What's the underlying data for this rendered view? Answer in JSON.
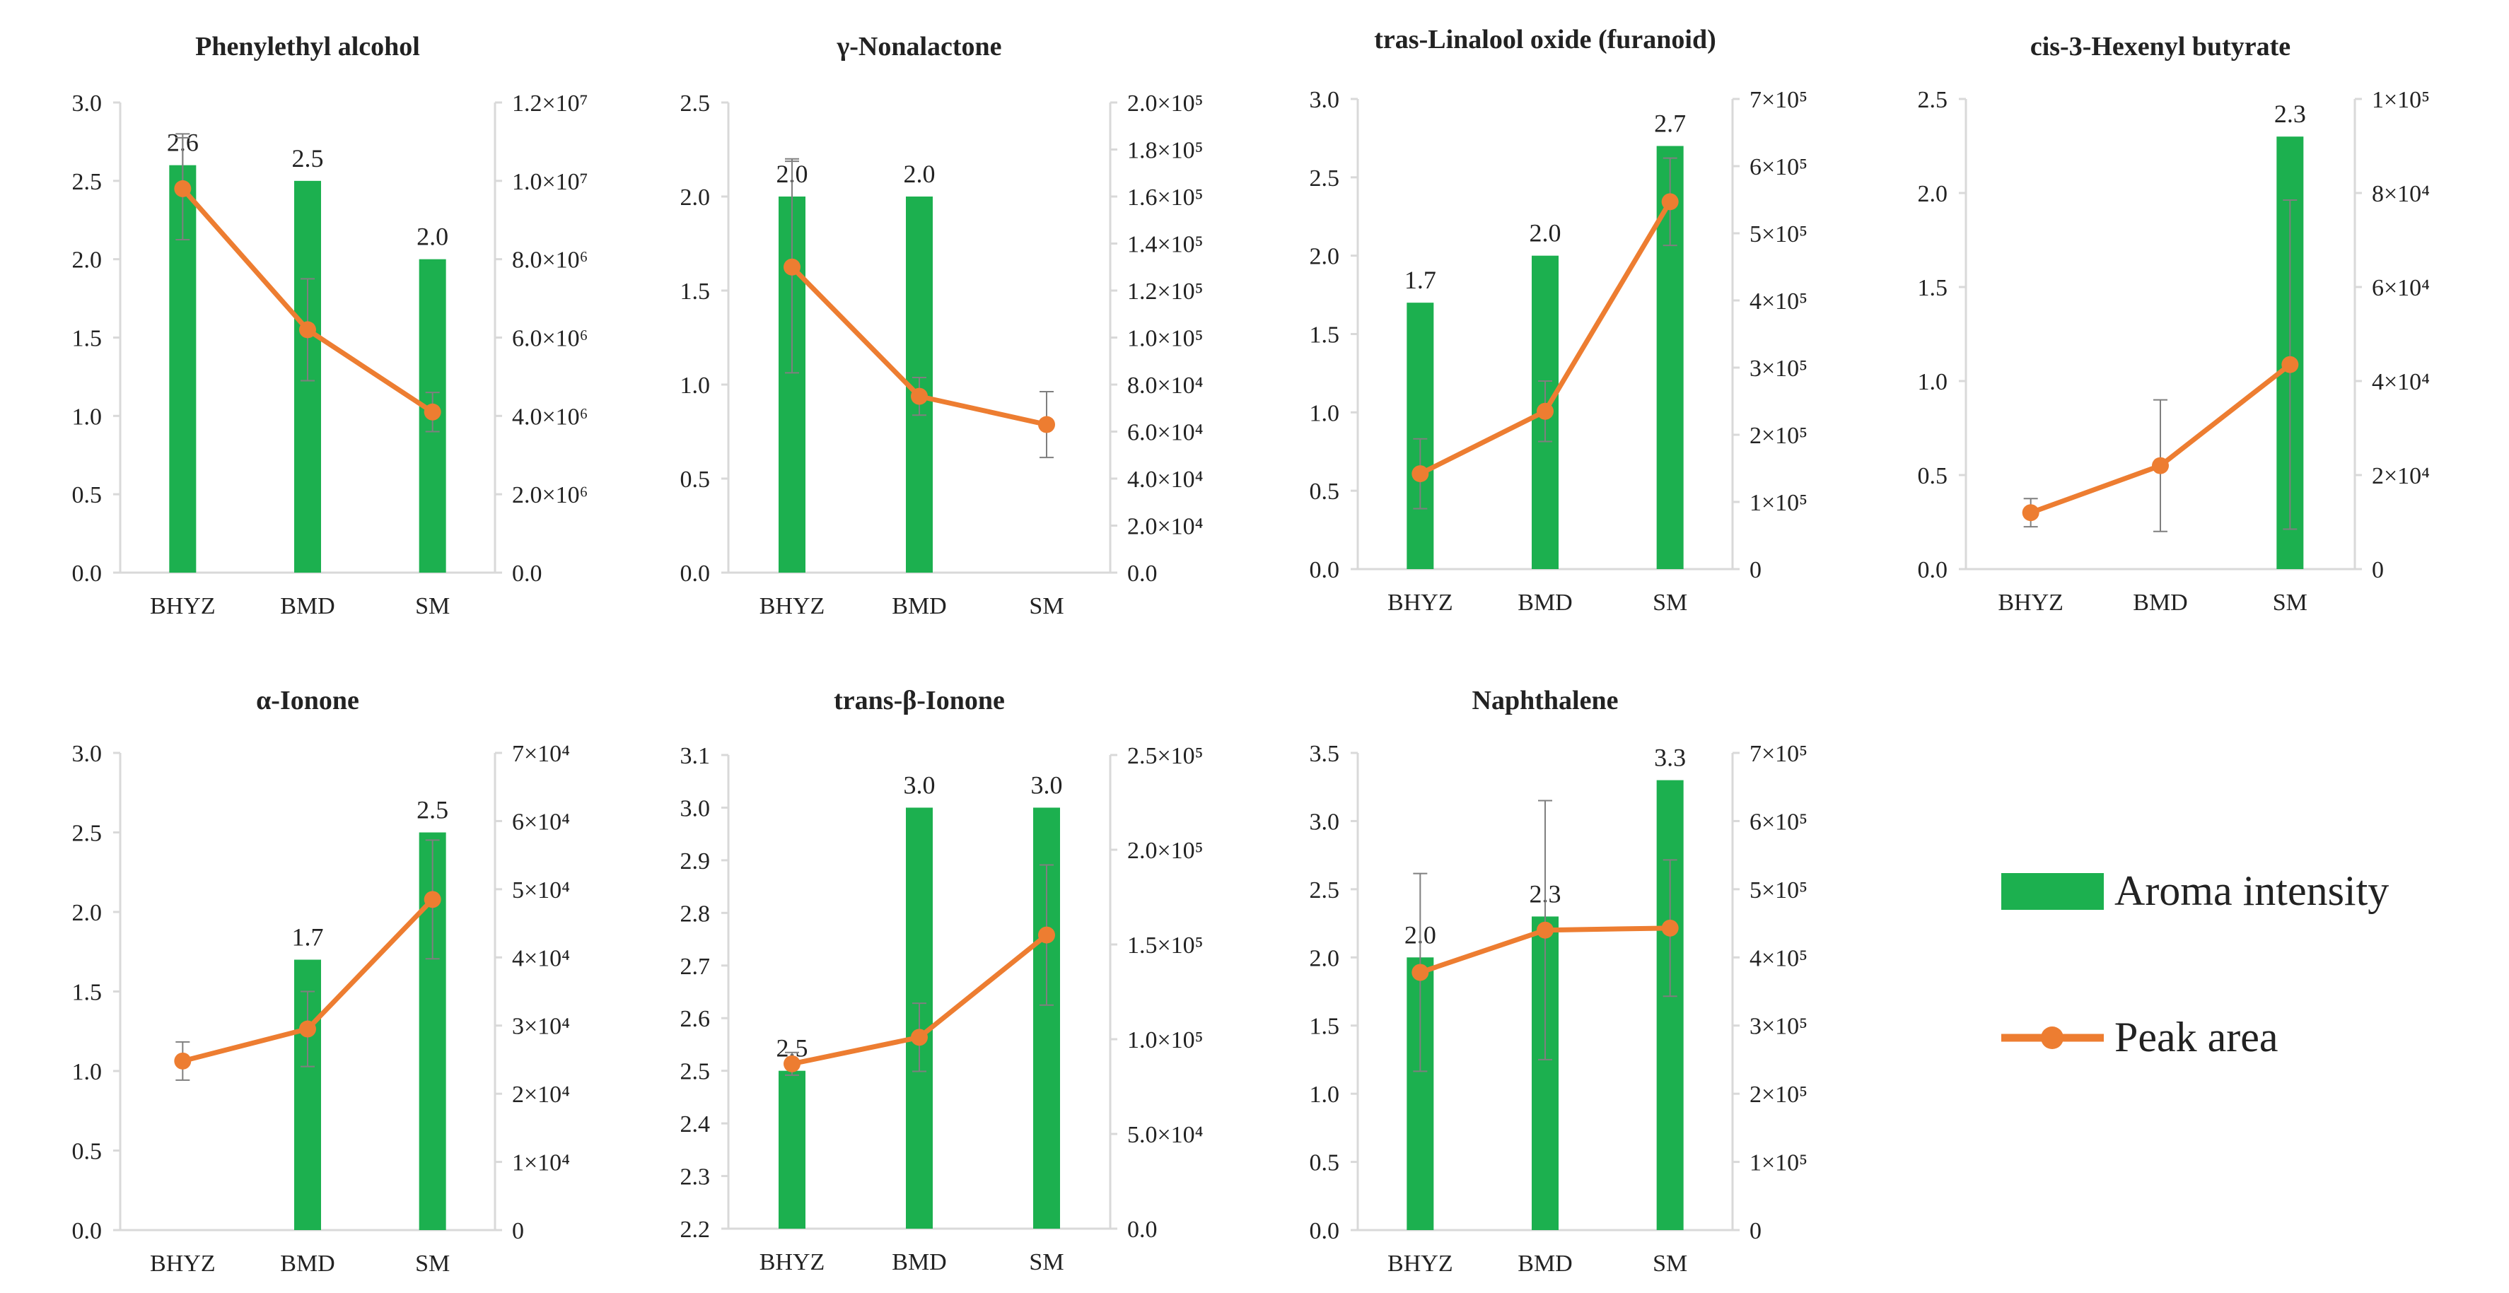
{
  "figure": {
    "colors": {
      "bar": "#1cb04f",
      "line": "#ed7d31",
      "axis": "#d9d9d9",
      "text": "#222222",
      "errorbar": "#7f7f7f"
    },
    "legend": {
      "bar_label": "Aroma intensity",
      "line_label": "Peak area"
    }
  },
  "chart_data": [
    {
      "type": "bar",
      "title": "Phenylethyl alcohol",
      "categories": [
        "BHYZ",
        "BMD",
        "SM"
      ],
      "series": [
        {
          "name": "Aroma intensity",
          "axis": "left",
          "values": [
            2.6,
            2.5,
            2.0
          ],
          "errors": [
            0.2,
            null,
            null
          ]
        },
        {
          "name": "Peak area",
          "axis": "right",
          "type": "line",
          "values": [
            9800000,
            6200000,
            4100000
          ],
          "errors": [
            1300000,
            1300000,
            500000
          ]
        }
      ],
      "data_labels": [
        "2.6",
        "2.5",
        "2.0"
      ],
      "ylim": [
        0,
        3.0
      ],
      "y_ticks": [
        "0.0",
        "0.5",
        "1.0",
        "1.5",
        "2.0",
        "2.5",
        "3.0"
      ],
      "y2lim": [
        0,
        12000000
      ],
      "y2_ticks": [
        "0.0",
        "2.0×10⁶",
        "4.0×10⁶",
        "6.0×10⁶",
        "8.0×10⁶",
        "1.0×10⁷",
        "1.2×10⁷"
      ]
    },
    {
      "type": "bar",
      "title": "γ-Nonalactone",
      "categories": [
        "BHYZ",
        "BMD",
        "SM"
      ],
      "series": [
        {
          "name": "Aroma intensity",
          "axis": "left",
          "values": [
            2.0,
            2.0,
            0
          ],
          "errors": [
            0.2,
            null,
            null
          ]
        },
        {
          "name": "Peak area",
          "axis": "right",
          "type": "line",
          "values": [
            130000,
            75000,
            63000
          ],
          "errors": [
            45000,
            8000,
            14000
          ]
        }
      ],
      "data_labels": [
        "2.0",
        "2.0",
        ""
      ],
      "ylim": [
        0,
        2.5
      ],
      "y_ticks": [
        "0.0",
        "0.5",
        "1.0",
        "1.5",
        "2.0",
        "2.5"
      ],
      "y2lim": [
        0,
        200000
      ],
      "y2_ticks": [
        "0.0",
        "2.0×10⁴",
        "4.0×10⁴",
        "6.0×10⁴",
        "8.0×10⁴",
        "1.0×10⁵",
        "1.2×10⁵",
        "1.4×10⁵",
        "1.6×10⁵",
        "1.8×10⁵",
        "2.0×10⁵"
      ]
    },
    {
      "type": "bar",
      "title": "tras-Linalool oxide (furanoid)",
      "categories": [
        "BHYZ",
        "BMD",
        "SM"
      ],
      "series": [
        {
          "name": "Aroma intensity",
          "axis": "left",
          "values": [
            1.7,
            2.0,
            2.7
          ],
          "errors": [
            null,
            null,
            null
          ]
        },
        {
          "name": "Peak area",
          "axis": "right",
          "type": "line",
          "values": [
            142000,
            235000,
            547000
          ],
          "errors": [
            52000,
            45000,
            65000
          ]
        }
      ],
      "data_labels": [
        "1.7",
        "2.0",
        "2.7"
      ],
      "ylim": [
        0,
        3.0
      ],
      "y_ticks": [
        "0.0",
        "0.5",
        "1.0",
        "1.5",
        "2.0",
        "2.5",
        "3.0"
      ],
      "y2lim": [
        0,
        700000
      ],
      "y2_ticks": [
        "0",
        "1×10⁵",
        "2×10⁵",
        "3×10⁵",
        "4×10⁵",
        "5×10⁵",
        "6×10⁵",
        "7×10⁵"
      ]
    },
    {
      "type": "bar",
      "title": "cis-3-Hexenyl butyrate",
      "categories": [
        "BHYZ",
        "BMD",
        "SM"
      ],
      "series": [
        {
          "name": "Aroma intensity",
          "axis": "left",
          "values": [
            0,
            0,
            2.3
          ],
          "errors": [
            null,
            null,
            null
          ]
        },
        {
          "name": "Peak area",
          "axis": "right",
          "type": "line",
          "values": [
            12000,
            22000,
            43500
          ],
          "errors": [
            3000,
            14000,
            35000
          ]
        }
      ],
      "data_labels": [
        "",
        "",
        "2.3"
      ],
      "ylim": [
        0,
        2.5
      ],
      "y_ticks": [
        "0.0",
        "0.5",
        "1.0",
        "1.5",
        "2.0",
        "2.5"
      ],
      "y2lim": [
        0,
        100000
      ],
      "y2_ticks": [
        "0",
        "2×10⁴",
        "4×10⁴",
        "6×10⁴",
        "8×10⁴",
        "1×10⁵"
      ]
    },
    {
      "type": "bar",
      "title": "α-Ionone",
      "categories": [
        "BHYZ",
        "BMD",
        "SM"
      ],
      "series": [
        {
          "name": "Aroma intensity",
          "axis": "left",
          "values": [
            0,
            1.7,
            2.5
          ],
          "errors": [
            null,
            null,
            null
          ]
        },
        {
          "name": "Peak area",
          "axis": "right",
          "type": "line",
          "values": [
            24800,
            29500,
            48500
          ],
          "errors": [
            2800,
            5500,
            8700
          ]
        }
      ],
      "data_labels": [
        "",
        "1.7",
        "2.5"
      ],
      "ylim": [
        0,
        3.0
      ],
      "y_ticks": [
        "0.0",
        "0.5",
        "1.0",
        "1.5",
        "2.0",
        "2.5",
        "3.0"
      ],
      "y2lim": [
        0,
        70000
      ],
      "y2_ticks": [
        "0",
        "1×10⁴",
        "2×10⁴",
        "3×10⁴",
        "4×10⁴",
        "5×10⁴",
        "6×10⁴",
        "7×10⁴"
      ]
    },
    {
      "type": "bar",
      "title": "trans-β-Ionone",
      "categories": [
        "BHYZ",
        "BMD",
        "SM"
      ],
      "series": [
        {
          "name": "Aroma intensity",
          "axis": "left",
          "values": [
            2.5,
            3.0,
            3.0
          ],
          "errors": [
            null,
            null,
            null
          ]
        },
        {
          "name": "Peak area",
          "axis": "right",
          "type": "line",
          "values": [
            87000,
            101000,
            155000
          ],
          "errors": [
            6000,
            18000,
            37000
          ]
        }
      ],
      "data_labels": [
        "2.5",
        "3.0",
        "3.0"
      ],
      "ylim": [
        2.2,
        3.1
      ],
      "y_ticks": [
        "2.2",
        "2.3",
        "2.4",
        "2.5",
        "2.6",
        "2.7",
        "2.8",
        "2.9",
        "3.0",
        "3.1"
      ],
      "y2lim": [
        0,
        250000
      ],
      "y2_ticks": [
        "0.0",
        "5.0×10⁴",
        "1.0×10⁵",
        "1.5×10⁵",
        "2.0×10⁵",
        "2.5×10⁵"
      ]
    },
    {
      "type": "bar",
      "title": "Naphthalene",
      "categories": [
        "BHYZ",
        "BMD",
        "SM"
      ],
      "series": [
        {
          "name": "Aroma intensity",
          "axis": "left",
          "values": [
            2.0,
            2.3,
            3.3
          ],
          "errors": [
            null,
            null,
            null
          ]
        },
        {
          "name": "Peak area",
          "axis": "right",
          "type": "line",
          "values": [
            378000,
            440000,
            443000
          ],
          "errors": [
            145000,
            190000,
            100000
          ]
        }
      ],
      "data_labels": [
        "2.0",
        "2.3",
        "3.3"
      ],
      "ylim": [
        0,
        3.5
      ],
      "y_ticks": [
        "0.0",
        "0.5",
        "1.0",
        "1.5",
        "2.0",
        "2.5",
        "3.0",
        "3.5"
      ],
      "y2lim": [
        0,
        700000
      ],
      "y2_ticks": [
        "0",
        "1×10⁵",
        "2×10⁵",
        "3×10⁵",
        "4×10⁵",
        "5×10⁵",
        "6×10⁵",
        "7×10⁵"
      ]
    }
  ]
}
